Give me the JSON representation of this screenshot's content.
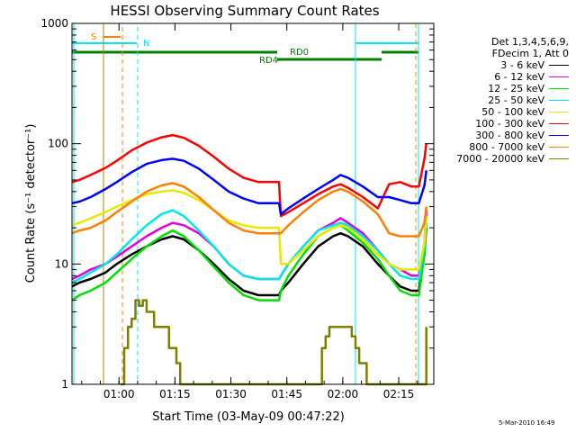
{
  "chart_data": {
    "type": "line",
    "title": "HESSI Observing Summary Count Rates",
    "xlabel": "Start Time (03-May-09 00:47:22)",
    "ylabel": "Count Rate (s⁻¹ detector⁻¹)",
    "y_scale": "log",
    "ylim": [
      1,
      1000
    ],
    "xlim_minutes": [
      0,
      97
    ],
    "x_ticks": [
      "01:00",
      "01:15",
      "01:30",
      "01:45",
      "02:00",
      "02:15"
    ],
    "x_tick_minutes": [
      12.6,
      27.6,
      42.6,
      57.6,
      72.6,
      87.6
    ],
    "y_ticks": [
      "1",
      "10",
      "100",
      "1000"
    ],
    "y_tick_values": [
      1,
      10,
      100,
      1000
    ],
    "legend_header": [
      "Det 1,3,4,5,6,9,",
      "FDecim 1, Att 0"
    ],
    "series": [
      {
        "name": "3 - 6 keV",
        "color": "#000000",
        "x": [
          0,
          2,
          5,
          9,
          12,
          16,
          20,
          24,
          27,
          30,
          34,
          38,
          42,
          46,
          50,
          54,
          55.5,
          56,
          58,
          62,
          66,
          70,
          72,
          74,
          78,
          82,
          85,
          88,
          91,
          93,
          94.5,
          95
        ],
        "values": [
          6.5,
          7,
          7.5,
          8.5,
          10,
          12,
          14,
          16,
          17,
          16,
          13,
          10,
          7.5,
          6,
          5.5,
          5.5,
          5.5,
          6,
          7,
          10,
          14,
          17,
          18,
          17,
          14,
          10,
          8,
          6.5,
          6,
          6,
          12,
          20
        ]
      },
      {
        "name": "6 - 12 keV",
        "color": "#e000e0",
        "x": [
          0,
          2,
          5,
          9,
          12,
          16,
          20,
          24,
          27,
          30,
          34,
          38,
          42,
          46,
          50,
          54,
          55.5,
          56,
          58,
          62,
          66,
          70,
          72,
          74,
          78,
          82,
          85,
          88,
          91,
          93,
          94.5,
          95
        ],
        "values": [
          7.5,
          8,
          9,
          10,
          11.5,
          14,
          17,
          20,
          22,
          21,
          18,
          14,
          10,
          8,
          7.5,
          7.5,
          7.5,
          8,
          10,
          14,
          19,
          22,
          24,
          22,
          18,
          13,
          10,
          9,
          8,
          8,
          15,
          28
        ]
      },
      {
        "name": "12 - 25 keV",
        "color": "#00e000",
        "x": [
          0,
          2,
          5,
          9,
          12,
          16,
          20,
          24,
          27,
          30,
          34,
          38,
          42,
          46,
          50,
          54,
          55.5,
          56,
          58,
          62,
          66,
          70,
          72,
          74,
          78,
          82,
          85,
          88,
          91,
          93,
          94.5,
          95
        ],
        "values": [
          5,
          5.5,
          6,
          7,
          8.5,
          11,
          14,
          17,
          19,
          17,
          13,
          9.5,
          7,
          5.5,
          5,
          5,
          5,
          6,
          8,
          12,
          17,
          20,
          21,
          19,
          15,
          11,
          8,
          6,
          5.5,
          5.5,
          12,
          22
        ]
      },
      {
        "name": "25 - 50 keV",
        "color": "#00e8e8",
        "x": [
          0,
          2,
          5,
          9,
          12,
          16,
          20,
          24,
          27,
          30,
          34,
          38,
          42,
          46,
          50,
          54,
          55.5,
          56,
          58,
          62,
          66,
          70,
          72,
          74,
          78,
          82,
          85,
          88,
          91,
          93,
          94.5,
          95
        ],
        "values": [
          7,
          7.5,
          8.5,
          10,
          12,
          16,
          21,
          26,
          28,
          25,
          19,
          14,
          10,
          8,
          7.5,
          7.5,
          7.5,
          8,
          10,
          14,
          19,
          21,
          22,
          21,
          17,
          13,
          10,
          8,
          7.5,
          7.5,
          14,
          25
        ]
      },
      {
        "name": "50 - 100 keV",
        "color": "#e8e800",
        "x": [
          0,
          2,
          5,
          9,
          12,
          16,
          20,
          24,
          27,
          30,
          34,
          38,
          42,
          46,
          50,
          54,
          55.5,
          56,
          58,
          62,
          66,
          70,
          72,
          74,
          78,
          82,
          85,
          88,
          91,
          93,
          94.5,
          95
        ],
        "values": [
          21,
          22,
          24,
          27,
          30,
          34,
          38,
          40,
          41,
          39,
          34,
          28,
          23,
          21,
          20,
          20,
          20,
          10,
          10,
          13,
          17,
          20,
          21,
          20,
          16,
          12,
          10,
          9,
          9,
          9,
          15,
          25
        ]
      },
      {
        "name": "100 - 300 keV",
        "color": "#ff0000",
        "x": [
          0,
          2,
          5,
          9,
          12,
          16,
          20,
          24,
          27,
          30,
          34,
          38,
          42,
          46,
          50,
          54,
          55.5,
          56,
          58,
          62,
          66,
          70,
          72,
          74,
          78,
          82,
          85,
          88,
          91,
          93,
          94.5,
          95
        ],
        "values": [
          48,
          50,
          55,
          63,
          72,
          88,
          102,
          113,
          118,
          112,
          96,
          78,
          62,
          52,
          48,
          48,
          48,
          25,
          27,
          32,
          38,
          44,
          46,
          43,
          36,
          29,
          46,
          48,
          44,
          44,
          75,
          100
        ]
      },
      {
        "name": "300 - 800 keV",
        "color": "#0000ff",
        "x": [
          0,
          2,
          5,
          9,
          12,
          16,
          20,
          24,
          27,
          30,
          34,
          38,
          42,
          46,
          50,
          54,
          55.5,
          56,
          58,
          62,
          66,
          70,
          72,
          74,
          78,
          82,
          85,
          88,
          91,
          93,
          94.5,
          95
        ],
        "values": [
          32,
          33,
          36,
          42,
          48,
          58,
          68,
          73,
          75,
          72,
          62,
          50,
          40,
          35,
          32,
          32,
          32,
          26,
          29,
          35,
          42,
          50,
          55,
          52,
          44,
          36,
          36,
          34,
          32,
          32,
          45,
          60
        ]
      },
      {
        "name": "800 - 7000 keV",
        "color": "#ff8000",
        "x": [
          0,
          2,
          5,
          9,
          12,
          16,
          20,
          24,
          27,
          30,
          34,
          38,
          42,
          46,
          50,
          54,
          55.5,
          56,
          58,
          62,
          66,
          70,
          72,
          74,
          78,
          82,
          85,
          88,
          91,
          93,
          94.5,
          95
        ],
        "values": [
          18,
          19,
          20,
          23,
          27,
          33,
          40,
          45,
          47,
          44,
          36,
          28,
          22,
          19,
          18,
          18,
          18,
          18,
          21,
          27,
          34,
          40,
          42,
          40,
          33,
          26,
          18,
          17,
          17,
          17,
          22,
          30
        ]
      },
      {
        "name": "7000 - 20000 keV",
        "color": "#808000",
        "x": [
          13,
          14,
          15,
          16,
          17,
          18,
          19,
          20,
          21,
          22,
          23,
          24,
          25,
          26,
          27,
          28,
          29,
          66,
          67,
          68,
          69,
          70,
          71,
          72,
          73,
          74,
          75,
          76,
          77,
          78,
          79,
          80,
          95
        ],
        "values": [
          1,
          2,
          3,
          3.5,
          5,
          4.5,
          5,
          4,
          4,
          3,
          3,
          3,
          3,
          2,
          2,
          1.5,
          1,
          1,
          2,
          2.5,
          3,
          3,
          3,
          3,
          3,
          3,
          2.5,
          2,
          1.5,
          1.5,
          1,
          1,
          3
        ]
      }
    ],
    "flag_bars": [
      {
        "label": "S",
        "color": "#ff8000"
      },
      {
        "label": "N",
        "color": "#00e8e8"
      },
      {
        "label": "RD0",
        "color": "#008000"
      },
      {
        "label": "RD4",
        "color": "#008000"
      }
    ],
    "footer_stamp": "5-Mar-2010 16:49"
  }
}
